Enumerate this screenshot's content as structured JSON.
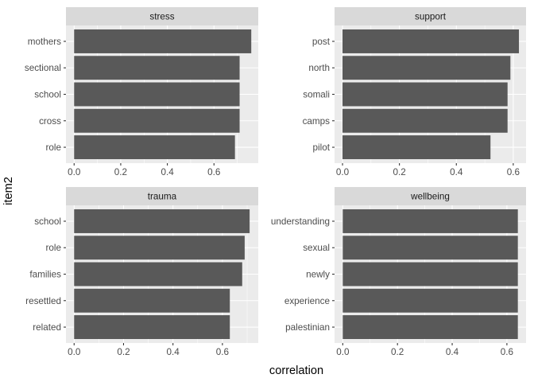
{
  "chart_data": {
    "type": "bar",
    "orientation": "horizontal",
    "facets": [
      "stress",
      "support",
      "trauma",
      "wellbeing"
    ],
    "xlabel": "correlation",
    "ylabel": "item2",
    "grid": true,
    "legend": "none",
    "bar_color": "#595959",
    "panels": [
      {
        "title": "stress",
        "categories": [
          "mothers",
          "sectional",
          "school",
          "cross",
          "role"
        ],
        "values": [
          0.76,
          0.71,
          0.71,
          0.71,
          0.69
        ],
        "xlim": [
          -0.035,
          0.79
        ],
        "xticks": [
          0,
          0.2,
          0.4,
          0.6
        ],
        "xtick_labels": [
          "0.0",
          "0.2",
          "0.4",
          "0.6"
        ]
      },
      {
        "title": "support",
        "categories": [
          "post",
          "north",
          "somali",
          "camps",
          "pilot"
        ],
        "values": [
          0.62,
          0.59,
          0.58,
          0.58,
          0.52
        ],
        "xlim": [
          -0.028,
          0.645
        ],
        "xticks": [
          0,
          0.2,
          0.4,
          0.6
        ],
        "xtick_labels": [
          "0.0",
          "0.2",
          "0.4",
          "0.6"
        ]
      },
      {
        "title": "trauma",
        "categories": [
          "school",
          "role",
          "families",
          "resettled",
          "related"
        ],
        "values": [
          0.71,
          0.69,
          0.68,
          0.63,
          0.63
        ],
        "xlim": [
          -0.033,
          0.745
        ],
        "xticks": [
          0,
          0.2,
          0.4,
          0.6
        ],
        "xtick_labels": [
          "0.0",
          "0.2",
          "0.4",
          "0.6"
        ]
      },
      {
        "title": "wellbeing",
        "categories": [
          "understanding",
          "sexual",
          "newly",
          "experience",
          "palestinian"
        ],
        "values": [
          0.64,
          0.64,
          0.64,
          0.64,
          0.64
        ],
        "xlim": [
          -0.03,
          0.67
        ],
        "xticks": [
          0,
          0.2,
          0.4,
          0.6
        ],
        "xtick_labels": [
          "0.0",
          "0.2",
          "0.4",
          "0.6"
        ]
      }
    ]
  }
}
